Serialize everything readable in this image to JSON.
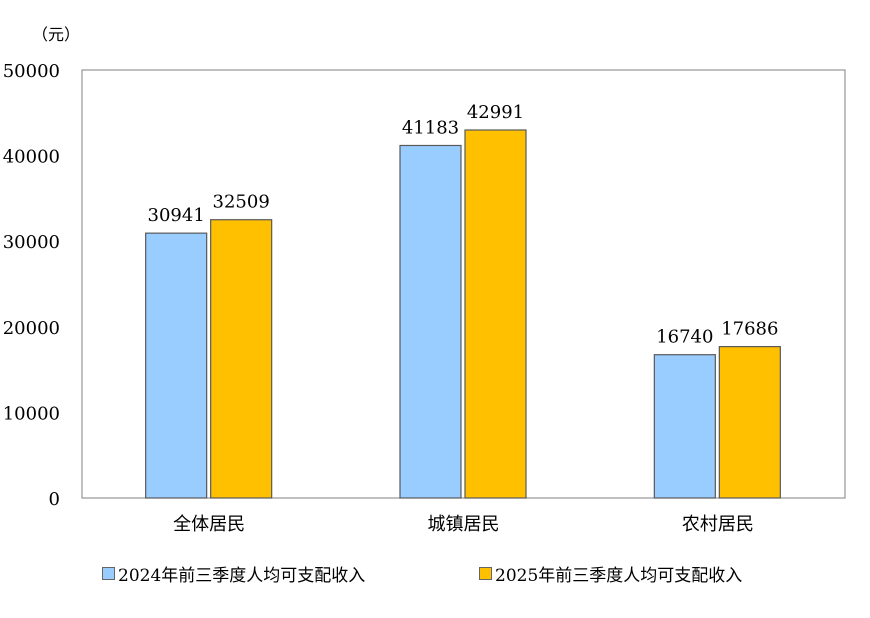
{
  "chart_data": {
    "type": "bar",
    "unit_label": "（元）",
    "categories": [
      "全体居民",
      "城镇居民",
      "农村居民"
    ],
    "series": [
      {
        "name": "2024年前三季度人均可支配收入",
        "color": "#99CCFF",
        "values": [
          30941,
          41183,
          16740
        ]
      },
      {
        "name": "2025年前三季度人均可支配收入",
        "color": "#FFC000",
        "values": [
          32509,
          42991,
          17686
        ]
      }
    ],
    "ylim": [
      0,
      50000
    ],
    "yticks": [
      0,
      10000,
      20000,
      30000,
      40000,
      50000
    ],
    "grid": false,
    "legend": "bottom",
    "data_labels": true
  }
}
